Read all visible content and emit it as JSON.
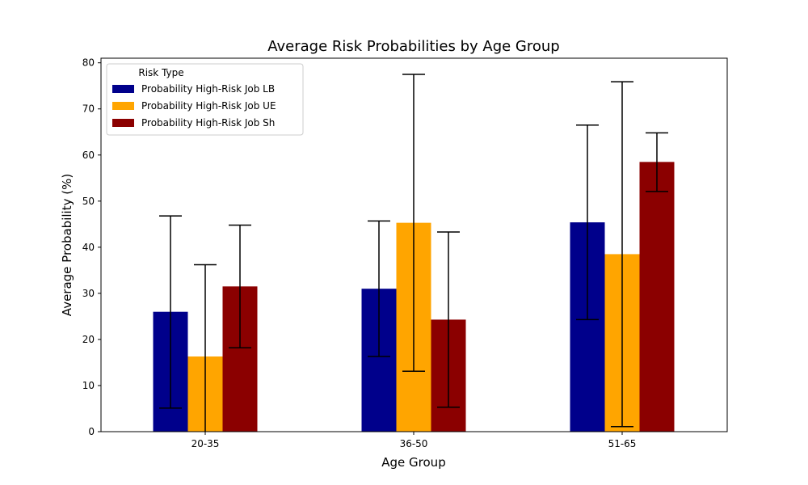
{
  "chart_data": {
    "type": "bar",
    "title": "Average Risk Probabilities by Age Group",
    "xlabel": "Age Group",
    "ylabel": "Average Probability (%)",
    "categories": [
      "20-35",
      "36-50",
      "51-65"
    ],
    "ylim": [
      0,
      81
    ],
    "yticks": [
      0,
      10,
      20,
      30,
      40,
      50,
      60,
      70,
      80
    ],
    "grid": false,
    "legend": {
      "title": "Risk Type",
      "placement": "top-left"
    },
    "series": [
      {
        "name": "Probability High-Risk Job LB",
        "color": "#00008b",
        "values": [
          26.0,
          31.0,
          45.4
        ],
        "error_low": [
          5.1,
          16.3,
          24.3
        ],
        "error_high": [
          46.8,
          45.7,
          66.5
        ]
      },
      {
        "name": "Probability High-Risk Job UE",
        "color": "#ffa500",
        "values": [
          16.3,
          45.3,
          38.5
        ],
        "error_low": [
          -3.6,
          13.1,
          1.1
        ],
        "error_high": [
          36.2,
          77.5,
          75.9
        ]
      },
      {
        "name": "Probability High-Risk Job Sh",
        "color": "#8b0000",
        "values": [
          31.5,
          24.3,
          58.5
        ],
        "error_low": [
          18.2,
          5.3,
          52.1
        ],
        "error_high": [
          44.8,
          43.3,
          64.8
        ]
      }
    ]
  }
}
